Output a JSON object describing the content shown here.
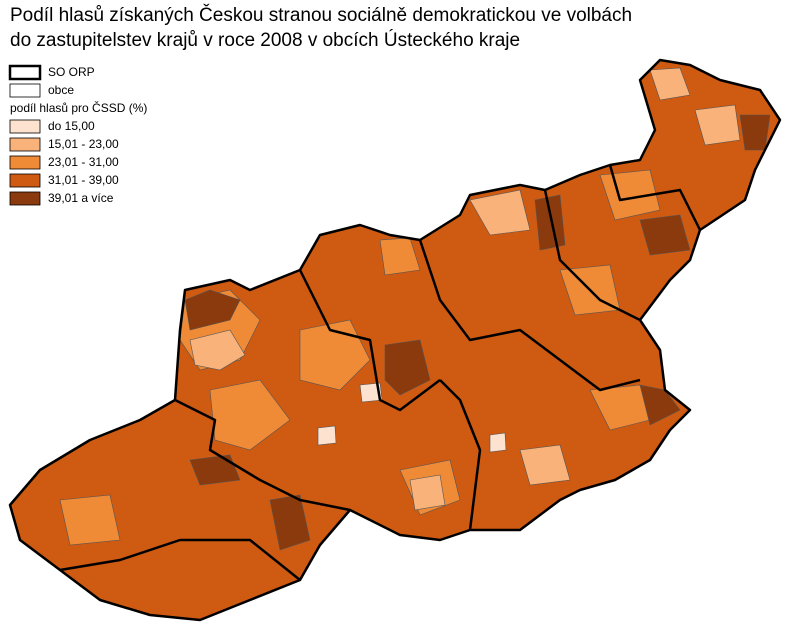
{
  "title": [
    "Podíl hlasů získaných Českou stranou sociálně demokratickou ve volbách",
    "do zastupitelstev krajů v roce 2008 v obcích Ústeckého kraje"
  ],
  "legend": {
    "boundaries": [
      {
        "label": "SO ORP"
      },
      {
        "label": "obce"
      }
    ],
    "heading": "podíl hlasů pro ČSSD (%)",
    "classes": [
      {
        "label": "do 15,00",
        "color": "#fde3cf"
      },
      {
        "label": "15,01 - 23,00",
        "color": "#f8b27a"
      },
      {
        "label": "23,01 - 31,00",
        "color": "#ef8a36"
      },
      {
        "label": "31,01 - 39,00",
        "color": "#cf5a12"
      },
      {
        "label": "39,01 a více",
        "color": "#8a3a0c"
      }
    ]
  }
}
